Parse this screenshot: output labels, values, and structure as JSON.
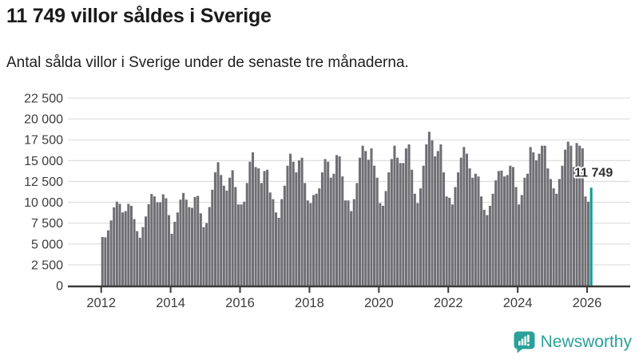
{
  "header": {
    "title": "11 749 villor såldes i Sverige",
    "subtitle": "Antal sålda villor i Sverige under de senaste tre månaderna."
  },
  "footer": {
    "brand": "Newsworthy",
    "logo_icon": "bar-chart-speech-bubble",
    "brand_color": "#2aa19a"
  },
  "chart_data": {
    "type": "bar",
    "title": "11 749 villor såldes i Sverige",
    "subtitle": "Antal sålda villor i Sverige under de senaste tre månaderna.",
    "x_start": "2012-01",
    "x_freq": "monthly",
    "x_tick_years": [
      2012,
      2014,
      2016,
      2018,
      2020,
      2022,
      2024,
      2026
    ],
    "y_ticks": [
      0,
      2500,
      5000,
      7500,
      10000,
      12500,
      15000,
      17500,
      20000,
      22500
    ],
    "y_tick_labels": [
      "0",
      "2 500",
      "5 000",
      "7 500",
      "10 000",
      "12 500",
      "15 000",
      "17 500",
      "20 000",
      "22 500"
    ],
    "ylim": [
      0,
      22500
    ],
    "grid": "horizontal",
    "legend": "none",
    "bar_color": "#6e6e73",
    "highlight_color": "#0d9c94",
    "highlight_index": 169,
    "annotation": {
      "text": "11 749",
      "value": 11749
    },
    "values": [
      5840,
      5800,
      6630,
      7820,
      9390,
      10070,
      9810,
      8780,
      8940,
      9810,
      9580,
      7980,
      6540,
      5740,
      7020,
      8300,
      9770,
      11000,
      10700,
      10000,
      10000,
      10960,
      10480,
      8460,
      6220,
      7660,
      8780,
      10320,
      11120,
      10320,
      9420,
      9330,
      10640,
      10770,
      8680,
      7020,
      7500,
      9420,
      11510,
      13590,
      14810,
      13270,
      11990,
      11410,
      12950,
      13850,
      11830,
      9740,
      9740,
      10070,
      12310,
      14870,
      15990,
      14230,
      14070,
      12310,
      13750,
      13910,
      11180,
      10380,
      8780,
      8140,
      10380,
      11990,
      14390,
      15830,
      14870,
      13590,
      15030,
      15350,
      12310,
      10220,
      9900,
      10870,
      11030,
      11670,
      13590,
      15190,
      14870,
      12950,
      13430,
      15670,
      15510,
      13100,
      10220,
      10220,
      8940,
      10380,
      12310,
      15350,
      16790,
      16150,
      15100,
      16470,
      14390,
      12950,
      9900,
      9580,
      11350,
      13590,
      15190,
      16790,
      15350,
      14710,
      14710,
      16470,
      16950,
      13910,
      11030,
      9900,
      11670,
      14390,
      16950,
      18460,
      17430,
      15510,
      16150,
      16950,
      13590,
      10700,
      10540,
      9740,
      11830,
      13590,
      15350,
      16630,
      15830,
      14070,
      12950,
      13430,
      13100,
      10700,
      9100,
      8460,
      9580,
      11030,
      12630,
      13750,
      13800,
      13100,
      13270,
      14390,
      14230,
      11830,
      9740,
      10870,
      12950,
      13430,
      16630,
      15990,
      15030,
      15830,
      16790,
      16790,
      14070,
      12790,
      11670,
      11030,
      12790,
      14390,
      16310,
      17280,
      16790,
      14230,
      17110,
      16790,
      16470,
      10700,
      10070,
      11749
    ]
  }
}
